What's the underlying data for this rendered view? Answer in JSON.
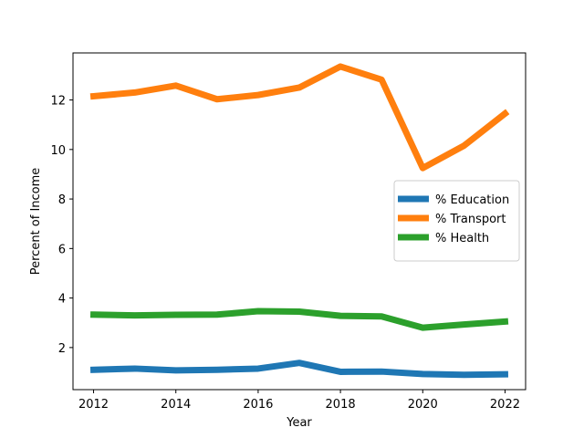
{
  "chart_data": {
    "type": "line",
    "title": "",
    "xlabel": "Year",
    "ylabel": "Percent of Income",
    "x": [
      2012,
      2013,
      2014,
      2015,
      2016,
      2017,
      2018,
      2019,
      2020,
      2021,
      2022
    ],
    "xticks": [
      "2012",
      "2014",
      "2016",
      "2018",
      "2020",
      "2022"
    ],
    "yticks": [
      "2",
      "4",
      "6",
      "8",
      "10",
      "12"
    ],
    "xlim": [
      2011.5,
      2022.5
    ],
    "ylim": [
      0.3,
      13.9
    ],
    "grid": false,
    "legend_position": "center-right",
    "series": [
      {
        "name": "% Education",
        "color": "#1f77b4",
        "values": [
          1.1,
          1.15,
          1.08,
          1.1,
          1.15,
          1.38,
          1.02,
          1.03,
          0.93,
          0.9,
          0.92
        ]
      },
      {
        "name": "% Transport",
        "color": "#ff7f0e",
        "values": [
          12.15,
          12.3,
          12.58,
          12.03,
          12.2,
          12.5,
          13.35,
          12.82,
          9.25,
          10.15,
          11.45
        ]
      },
      {
        "name": "% Health",
        "color": "#2ca02c",
        "values": [
          3.33,
          3.3,
          3.32,
          3.33,
          3.47,
          3.45,
          3.28,
          3.26,
          2.8,
          2.93,
          3.05
        ]
      }
    ]
  }
}
